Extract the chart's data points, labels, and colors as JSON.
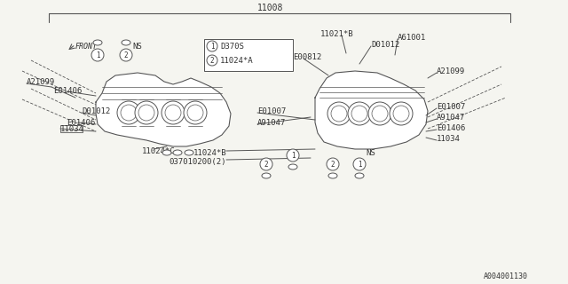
{
  "bg_color": "#f5f5f0",
  "line_color": "#555555",
  "text_color": "#333333",
  "title": "11008",
  "part_number": "A004001130",
  "labels": {
    "A21099_left": "A21099",
    "D01012_left": "D01012",
    "E01406_left": "E01406",
    "11024C": "11024*C",
    "11024B": "11024*B",
    "037010200": "037010200(2)",
    "E01007_mid": "E01007",
    "A91047_mid": "A91047",
    "11034_left": "11034",
    "E01406_left2": "E01406",
    "NS_left": "NS",
    "NS_top": "NS",
    "FRONT": "FRONT",
    "E01007_right": "E01007",
    "A91047_right": "A91047",
    "E01406_right": "E01406",
    "11034_right": "11034",
    "A21099_right": "A21099",
    "E00812": "E00812",
    "D01012_right": "D01012",
    "11021B": "11021*B",
    "A61001": "A61001",
    "legend1": "D370S",
    "legend2": "11024*A"
  },
  "font_size": 6.5
}
